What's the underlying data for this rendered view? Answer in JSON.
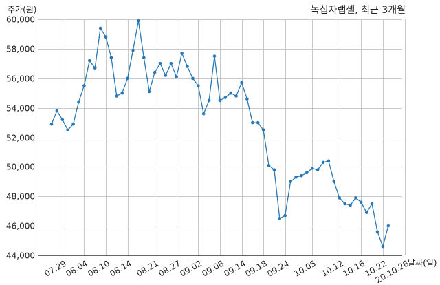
{
  "chart_data": {
    "type": "line",
    "title": "녹십자랩셀, 최근 3개월",
    "xlabel": "날짜(일)",
    "ylabel": "주가(원)",
    "ylim": [
      44000,
      60000
    ],
    "yticks": [
      44000,
      46000,
      48000,
      50000,
      52000,
      54000,
      56000,
      58000,
      60000
    ],
    "ytick_labels": [
      "44,000",
      "46,000",
      "48,000",
      "50,000",
      "52,000",
      "54,000",
      "56,000",
      "58,000",
      "60,000"
    ],
    "xtick_labels": [
      "07.29",
      "08.04",
      "08.10",
      "08.14",
      "08.21",
      "08.27",
      "09.02",
      "09.08",
      "09.14",
      "09.18",
      "09.24",
      "10.05",
      "10.12",
      "10.16",
      "10.22",
      "20.10.28"
    ],
    "xtick_index": [
      2,
      6,
      10,
      14,
      19,
      23,
      27,
      31,
      35,
      39,
      43,
      48,
      53,
      57,
      61,
      65
    ],
    "grid": true,
    "series": [
      {
        "color": "#2878b5",
        "values": [
          52900,
          53800,
          53200,
          52500,
          52900,
          54400,
          55500,
          57200,
          56700,
          59400,
          58800,
          57400,
          54800,
          55000,
          56000,
          57900,
          59900,
          57400,
          55100,
          56400,
          57000,
          56200,
          57000,
          56100,
          57700,
          56800,
          56000,
          55500,
          53600,
          54500,
          57500,
          54500,
          54700,
          55000,
          54800,
          55700,
          54600,
          53000,
          53000,
          52500,
          50100,
          49800,
          46500,
          46700,
          49000,
          49300,
          49400,
          49600,
          49900,
          49800,
          50300,
          50400,
          49000,
          47900,
          47500,
          47400,
          47900,
          47600,
          46900,
          47500,
          45600,
          44600,
          46000
        ]
      }
    ]
  }
}
